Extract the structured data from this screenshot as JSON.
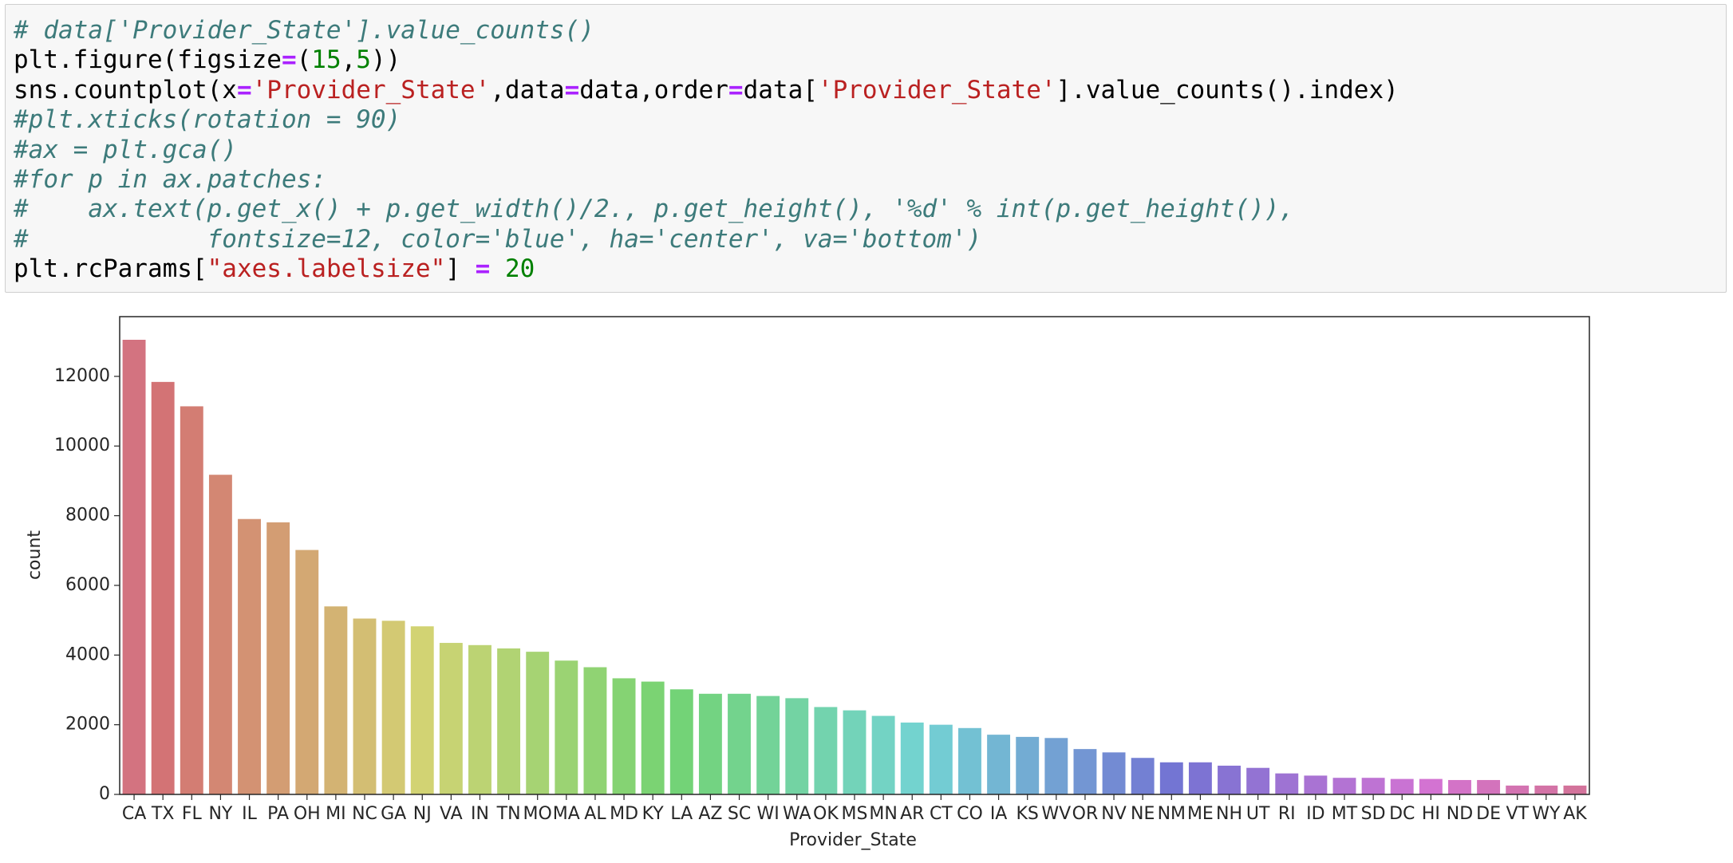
{
  "code_lines": [
    [
      {
        "text": "# data['Provider_State'].value_counts()",
        "color": "#3d7b7b",
        "italic": true
      }
    ],
    [
      {
        "text": "plt.figure(figsize"
      },
      {
        "text": "=",
        "color": "#aa22ff",
        "bold": true
      },
      {
        "text": "("
      },
      {
        "text": "15",
        "color": "#008000"
      },
      {
        "text": ","
      },
      {
        "text": "5",
        "color": "#008000"
      },
      {
        "text": "))"
      }
    ],
    [
      {
        "text": "sns.countplot(x"
      },
      {
        "text": "=",
        "color": "#aa22ff",
        "bold": true
      },
      {
        "text": "'Provider_State'",
        "color": "#ba2121"
      },
      {
        "text": ",data"
      },
      {
        "text": "=",
        "color": "#aa22ff",
        "bold": true
      },
      {
        "text": "data,order"
      },
      {
        "text": "=",
        "color": "#aa22ff",
        "bold": true
      },
      {
        "text": "data["
      },
      {
        "text": "'Provider_State'",
        "color": "#ba2121"
      },
      {
        "text": "].value_counts().index)"
      }
    ],
    [
      {
        "text": "#plt.xticks(rotation = 90)",
        "color": "#3d7b7b",
        "italic": true
      }
    ],
    [
      {
        "text": "#ax = plt.gca()",
        "color": "#3d7b7b",
        "italic": true
      }
    ],
    [
      {
        "text": "#for p in ax.patches:",
        "color": "#3d7b7b",
        "italic": true
      }
    ],
    [
      {
        "text": "#    ax.text(p.get_x() + p.get_width()/2., p.get_height(), '%d' % int(p.get_height()),",
        "color": "#3d7b7b",
        "italic": true
      }
    ],
    [
      {
        "text": "#            fontsize=12, color='blue', ha='center', va='bottom')",
        "color": "#3d7b7b",
        "italic": true
      }
    ],
    [
      {
        "text": "plt.rcParams["
      },
      {
        "text": "\"axes.labelsize\"",
        "color": "#ba2121"
      },
      {
        "text": "] "
      },
      {
        "text": "=",
        "color": "#aa22ff",
        "bold": true
      },
      {
        "text": " "
      },
      {
        "text": "20",
        "color": "#008000"
      }
    ]
  ],
  "chart_data": {
    "type": "bar",
    "x_label": "Provider_State",
    "y_label": "count",
    "palette": "husl",
    "categories": [
      "CA",
      "TX",
      "FL",
      "NY",
      "IL",
      "PA",
      "OH",
      "MI",
      "NC",
      "GA",
      "NJ",
      "VA",
      "IN",
      "TN",
      "MO",
      "MA",
      "AL",
      "MD",
      "KY",
      "LA",
      "AZ",
      "SC",
      "WI",
      "WA",
      "OK",
      "MS",
      "MN",
      "AR",
      "CT",
      "CO",
      "IA",
      "KS",
      "WV",
      "OR",
      "NV",
      "NE",
      "NM",
      "ME",
      "NH",
      "UT",
      "RI",
      "ID",
      "MT",
      "SD",
      "DC",
      "HI",
      "ND",
      "DE",
      "VT",
      "WY",
      "AK"
    ],
    "values": [
      13050,
      11840,
      11140,
      9175,
      7905,
      7810,
      7016,
      5397,
      5048,
      4984,
      4825,
      4349,
      4286,
      4190,
      4095,
      3841,
      3651,
      3333,
      3238,
      3016,
      2889,
      2889,
      2825,
      2762,
      2508,
      2413,
      2254,
      2063,
      2000,
      1905,
      1714,
      1651,
      1619,
      1302,
      1206,
      1048,
      921,
      921,
      825,
      762,
      603,
      540,
      476,
      476,
      444,
      444,
      413,
      413,
      254,
      254,
      254
    ],
    "ylim": [
      0,
      13714
    ],
    "yticks": [
      0,
      2000,
      4000,
      6000,
      8000,
      10000,
      12000
    ]
  }
}
